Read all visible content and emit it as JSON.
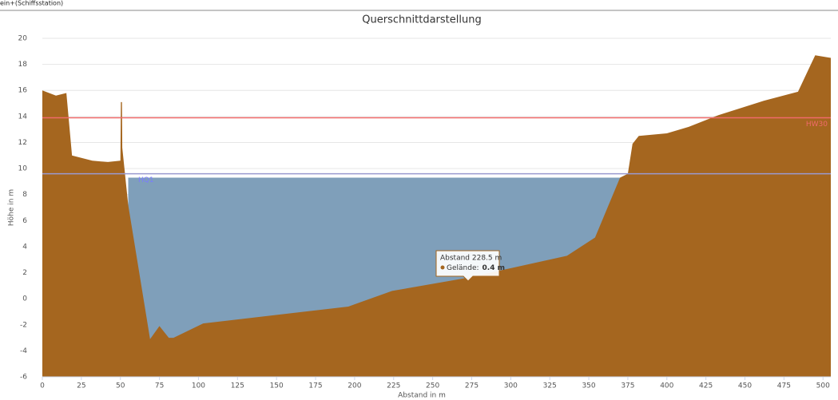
{
  "header": "ein+(Schiffsstation)",
  "chart_data": {
    "type": "area",
    "title": "Querschnittdarstellung",
    "x_label": "Abstand in m",
    "y_label": "Höhe in m",
    "xlim": [
      0,
      505
    ],
    "ylim": [
      -6,
      20
    ],
    "xticks": [
      0,
      25,
      50,
      75,
      100,
      125,
      150,
      175,
      200,
      225,
      250,
      275,
      300,
      325,
      350,
      375,
      400,
      425,
      450,
      475,
      500
    ],
    "yticks": [
      -6,
      -4,
      -2,
      0,
      2,
      4,
      6,
      8,
      10,
      12,
      14,
      16,
      18,
      20
    ],
    "grid": true,
    "series": [
      {
        "color": "#7f9fba",
        "x": [
          55,
          371
        ],
        "values": [
          9.3,
          9.3
        ]
      },
      {
        "color": "#a5661f",
        "x": [
          0,
          8.7,
          15.4,
          19,
          32,
          42,
          50,
          50.3,
          51,
          51.2,
          55,
          69,
          75,
          81,
          84,
          103,
          196,
          224,
          272,
          336,
          354,
          370,
          375,
          378,
          382,
          400,
          414,
          433,
          462,
          484,
          495,
          505
        ],
        "values": [
          16,
          15.6,
          15.8,
          11,
          10.6,
          10.5,
          10.6,
          15.1,
          15.1,
          11.6,
          7.2,
          -3.1,
          -2.1,
          -3,
          -3,
          -1.9,
          -0.6,
          0.6,
          1.6,
          3.3,
          4.7,
          9.3,
          9.6,
          11.9,
          12.5,
          12.7,
          13.2,
          14.1,
          15.2,
          15.9,
          18.7,
          18.5
        ]
      }
    ],
    "reference_lines": [
      {
        "name": "HQ1",
        "value": 9.6,
        "color": "#9a9ad0",
        "label_color": "#7b7bff",
        "label_side": "left"
      },
      {
        "name": "HW30",
        "value": 13.9,
        "color": "#f06a6a",
        "label_color": "#f06a6a",
        "label_side": "right"
      }
    ],
    "tooltip": {
      "title": "Abstand 228.5 m",
      "label": "Gelände:",
      "value": "0.4 m"
    }
  }
}
